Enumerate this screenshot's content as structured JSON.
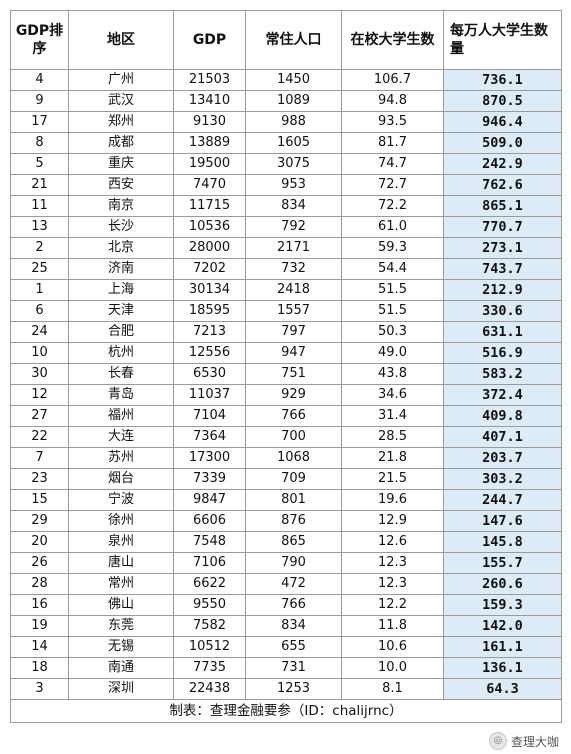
{
  "headers": [
    "GDP排序",
    "地区",
    "GDP",
    "常住人口",
    "在校大学生数",
    "每万人大学生数量"
  ],
  "rows": [
    {
      "rank": "4",
      "region": "广州",
      "gdp": "21503",
      "pop": "1450",
      "students": "106.7",
      "per10k": "736.1",
      "region_hl": true,
      "per10k_hl": false
    },
    {
      "rank": "9",
      "region": "武汉",
      "gdp": "13410",
      "pop": "1089",
      "students": "94.8",
      "per10k": "870.5",
      "region_hl": true,
      "per10k_hl": true
    },
    {
      "rank": "17",
      "region": "郑州",
      "gdp": "9130",
      "pop": "988",
      "students": "93.5",
      "per10k": "946.4",
      "region_hl": true,
      "per10k_hl": true
    },
    {
      "rank": "8",
      "region": "成都",
      "gdp": "13889",
      "pop": "1605",
      "students": "81.7",
      "per10k": "509.0",
      "region_hl": true,
      "per10k_hl": false
    },
    {
      "rank": "5",
      "region": "重庆",
      "gdp": "19500",
      "pop": "3075",
      "students": "74.7",
      "per10k": "242.9",
      "region_hl": true,
      "per10k_hl": false
    },
    {
      "rank": "21",
      "region": "西安",
      "gdp": "7470",
      "pop": "953",
      "students": "72.7",
      "per10k": "762.6",
      "region_hl": true,
      "per10k_hl": false
    },
    {
      "rank": "11",
      "region": "南京",
      "gdp": "11715",
      "pop": "834",
      "students": "72.2",
      "per10k": "865.1",
      "region_hl": true,
      "per10k_hl": true
    },
    {
      "rank": "13",
      "region": "长沙",
      "gdp": "10536",
      "pop": "792",
      "students": "61.0",
      "per10k": "770.7",
      "region_hl": true,
      "per10k_hl": false
    },
    {
      "rank": "2",
      "region": "北京",
      "gdp": "28000",
      "pop": "2171",
      "students": "59.3",
      "per10k": "273.1",
      "region_hl": true,
      "per10k_hl": false
    },
    {
      "rank": "25",
      "region": "济南",
      "gdp": "7202",
      "pop": "732",
      "students": "54.4",
      "per10k": "743.7",
      "region_hl": true,
      "per10k_hl": false
    },
    {
      "rank": "1",
      "region": "上海",
      "gdp": "30134",
      "pop": "2418",
      "students": "51.5",
      "per10k": "212.9",
      "region_hl": false,
      "per10k_hl": false
    },
    {
      "rank": "6",
      "region": "天津",
      "gdp": "18595",
      "pop": "1557",
      "students": "51.5",
      "per10k": "330.6",
      "region_hl": false,
      "per10k_hl": false
    },
    {
      "rank": "24",
      "region": "合肥",
      "gdp": "7213",
      "pop": "797",
      "students": "50.3",
      "per10k": "631.1",
      "region_hl": false,
      "per10k_hl": false
    },
    {
      "rank": "10",
      "region": "杭州",
      "gdp": "12556",
      "pop": "947",
      "students": "49.0",
      "per10k": "516.9",
      "region_hl": false,
      "per10k_hl": false
    },
    {
      "rank": "30",
      "region": "长春",
      "gdp": "6530",
      "pop": "751",
      "students": "43.8",
      "per10k": "583.2",
      "region_hl": false,
      "per10k_hl": false
    },
    {
      "rank": "12",
      "region": "青岛",
      "gdp": "11037",
      "pop": "929",
      "students": "34.6",
      "per10k": "372.4",
      "region_hl": false,
      "per10k_hl": false
    },
    {
      "rank": "27",
      "region": "福州",
      "gdp": "7104",
      "pop": "766",
      "students": "31.4",
      "per10k": "409.8",
      "region_hl": false,
      "per10k_hl": false
    },
    {
      "rank": "22",
      "region": "大连",
      "gdp": "7364",
      "pop": "700",
      "students": "28.5",
      "per10k": "407.1",
      "region_hl": false,
      "per10k_hl": false
    },
    {
      "rank": "7",
      "region": "苏州",
      "gdp": "17300",
      "pop": "1068",
      "students": "21.8",
      "per10k": "203.7",
      "region_hl": false,
      "per10k_hl": false
    },
    {
      "rank": "23",
      "region": "烟台",
      "gdp": "7339",
      "pop": "709",
      "students": "21.5",
      "per10k": "303.2",
      "region_hl": false,
      "per10k_hl": false
    },
    {
      "rank": "15",
      "region": "宁波",
      "gdp": "9847",
      "pop": "801",
      "students": "19.6",
      "per10k": "244.7",
      "region_hl": false,
      "per10k_hl": false
    },
    {
      "rank": "29",
      "region": "徐州",
      "gdp": "6606",
      "pop": "876",
      "students": "12.9",
      "per10k": "147.6",
      "region_hl": false,
      "per10k_hl": false
    },
    {
      "rank": "20",
      "region": "泉州",
      "gdp": "7548",
      "pop": "865",
      "students": "12.6",
      "per10k": "145.8",
      "region_hl": false,
      "per10k_hl": false
    },
    {
      "rank": "26",
      "region": "唐山",
      "gdp": "7106",
      "pop": "790",
      "students": "12.3",
      "per10k": "155.7",
      "region_hl": false,
      "per10k_hl": false
    },
    {
      "rank": "28",
      "region": "常州",
      "gdp": "6622",
      "pop": "472",
      "students": "12.3",
      "per10k": "260.6",
      "region_hl": false,
      "per10k_hl": false
    },
    {
      "rank": "16",
      "region": "佛山",
      "gdp": "9550",
      "pop": "766",
      "students": "12.2",
      "per10k": "159.3",
      "region_hl": false,
      "per10k_hl": false
    },
    {
      "rank": "19",
      "region": "东莞",
      "gdp": "7582",
      "pop": "834",
      "students": "11.8",
      "per10k": "142.0",
      "region_hl": false,
      "per10k_hl": true
    },
    {
      "rank": "14",
      "region": "无锡",
      "gdp": "10512",
      "pop": "655",
      "students": "10.6",
      "per10k": "161.1",
      "region_hl": false,
      "per10k_hl": false
    },
    {
      "rank": "18",
      "region": "南通",
      "gdp": "7735",
      "pop": "731",
      "students": "10.0",
      "per10k": "136.1",
      "region_hl": false,
      "per10k_hl": false
    },
    {
      "rank": "3",
      "region": "深圳",
      "gdp": "22438",
      "pop": "1253",
      "students": "8.1",
      "per10k": "64.3",
      "region_hl": false,
      "per10k_hl": false
    }
  ],
  "footer": "制表：查理金融要参（ID：chalijrnc）",
  "watermark": "查理大咖",
  "colors": {
    "region_highlight": "#f8cbad",
    "students_column": "#ddebf7",
    "per10k_highlight": "#f8cbad"
  }
}
